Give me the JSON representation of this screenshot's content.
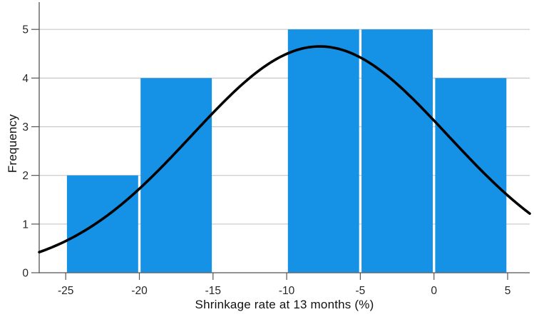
{
  "chart_data": {
    "type": "bar",
    "subtype": "histogram-with-normal-curve",
    "title": "",
    "xlabel": "Shrinkage rate at 13 months (%)",
    "ylabel": "Frequency",
    "bins": [
      {
        "x0": -25,
        "x1": -20,
        "frequency": 2
      },
      {
        "x0": -20,
        "x1": -15,
        "frequency": 4
      },
      {
        "x0": -15,
        "x1": -10,
        "frequency": 0
      },
      {
        "x0": -10,
        "x1": -5,
        "frequency": 5
      },
      {
        "x0": -5,
        "x1": 0,
        "frequency": 5
      },
      {
        "x0": 0,
        "x1": 5,
        "frequency": 4
      }
    ],
    "normal_curve": {
      "mean": -7.75,
      "sd": 8.7,
      "peak": 4.65
    },
    "xticks": [
      -25,
      -20,
      -15,
      -10,
      -5,
      0,
      5
    ],
    "yticks": [
      0,
      1,
      2,
      3,
      4,
      5
    ],
    "xlim": [
      -26.8,
      6.5
    ],
    "ylim": [
      0,
      5.56
    ],
    "grid": "horizontal",
    "legend": "none",
    "colors": {
      "bar": "#1591e6",
      "curve": "#000000",
      "gridline": "#c8c8c8",
      "axis": "#555555",
      "tick_text": "#262626",
      "background": "#ffffff"
    }
  }
}
